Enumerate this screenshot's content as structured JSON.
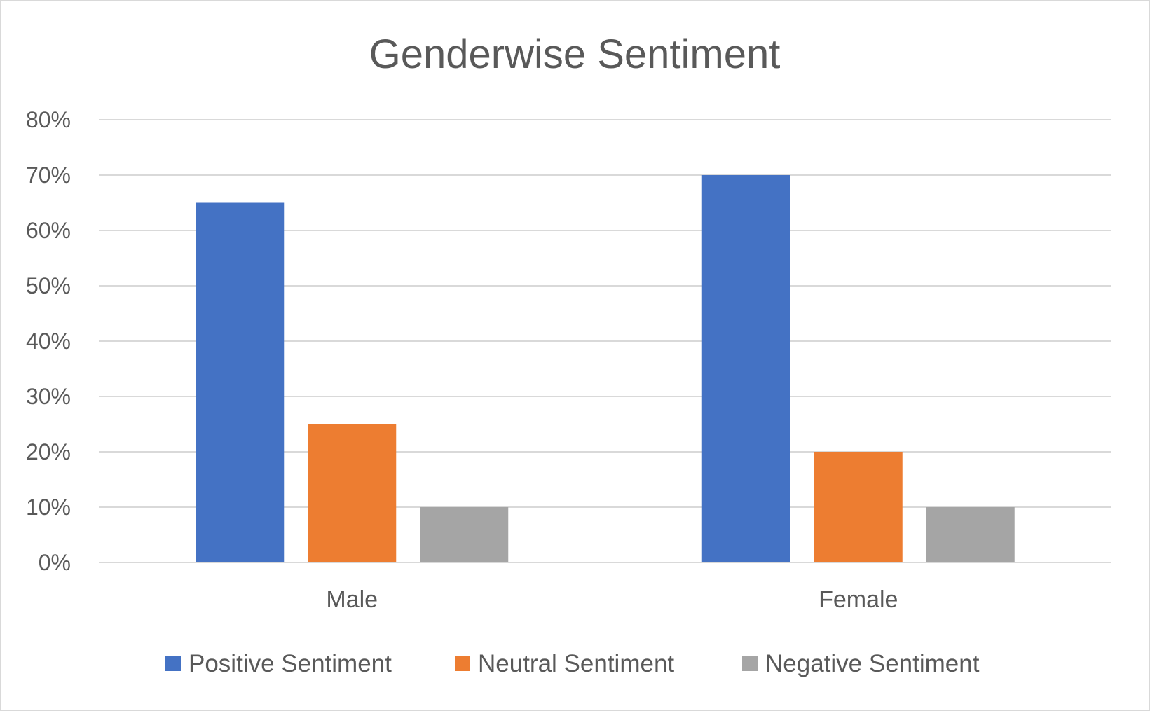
{
  "chart_data": {
    "type": "bar",
    "title": "Genderwise Sentiment",
    "categories": [
      "Male",
      "Female"
    ],
    "series": [
      {
        "name": "Positive Sentiment",
        "values": [
          65,
          70
        ],
        "color": "#4472c4"
      },
      {
        "name": "Neutral Sentiment",
        "values": [
          25,
          20
        ],
        "color": "#ed7d31"
      },
      {
        "name": "Negative Sentiment",
        "values": [
          10,
          10
        ],
        "color": "#a5a5a5"
      }
    ],
    "y_ticks": [
      "0%",
      "10%",
      "20%",
      "30%",
      "40%",
      "50%",
      "60%",
      "70%",
      "80%"
    ],
    "ylim": [
      0,
      80
    ],
    "grid": true,
    "legend_position": "bottom"
  }
}
